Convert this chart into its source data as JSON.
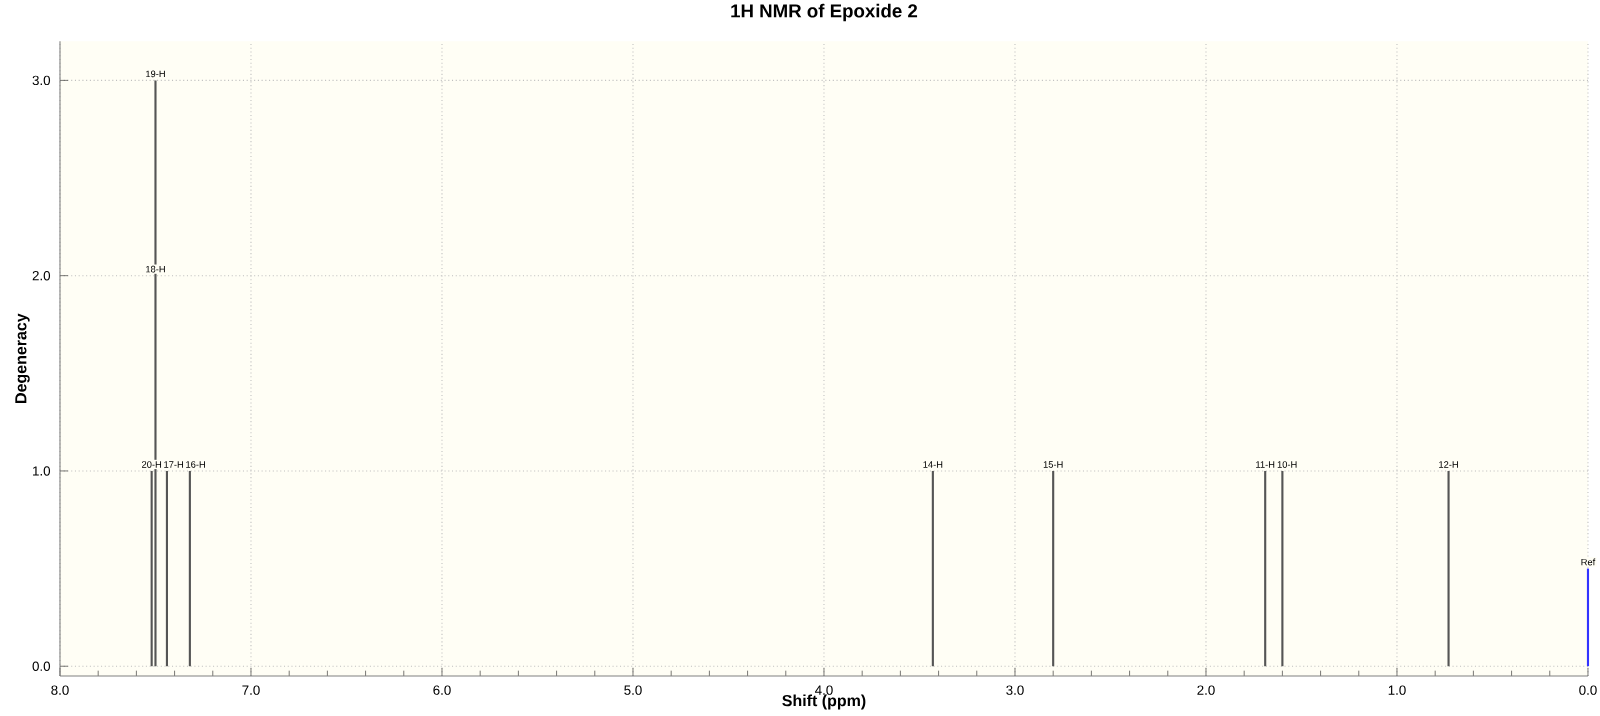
{
  "chart_data": {
    "type": "bar",
    "title": "1H NMR of Epoxide 2",
    "xlabel": "Shift (ppm)",
    "ylabel": "Degeneracy",
    "xlim": [
      8.0,
      0.0
    ],
    "xticks": [
      {
        "value": 8,
        "label": "8.0"
      },
      {
        "value": 7,
        "label": "7.0"
      },
      {
        "value": 6,
        "label": "6.0"
      },
      {
        "value": 5,
        "label": "5.0"
      },
      {
        "value": 4,
        "label": "4.0"
      },
      {
        "value": 3,
        "label": "3.0"
      },
      {
        "value": 2,
        "label": "2.0"
      },
      {
        "value": 1,
        "label": "1.0"
      },
      {
        "value": 0,
        "label": "0.0"
      }
    ],
    "ylim": [
      -0.05,
      3.2
    ],
    "yticks": [
      {
        "value": 0,
        "label": "0.0"
      },
      {
        "value": 1,
        "label": "1.0"
      },
      {
        "value": 2,
        "label": "2.0"
      },
      {
        "value": 3,
        "label": "3.0"
      }
    ],
    "grid": true,
    "series": [
      {
        "color": "#555555",
        "x": [
          7.52,
          7.5,
          7.44,
          7.32,
          3.43,
          2.8,
          1.69,
          1.6,
          0.73
        ],
        "values": [
          1,
          3,
          1,
          1,
          1,
          1,
          1,
          1,
          1
        ]
      },
      {
        "color": "#3333ff",
        "x": [
          0.0
        ],
        "values": [
          0.5
        ]
      }
    ],
    "annotations": [
      {
        "text": "19-H",
        "x": 7.5,
        "y": 3
      },
      {
        "text": "18-H",
        "x": 7.5,
        "y": 2
      },
      {
        "text": "20-H",
        "x": 7.52,
        "y": 1
      },
      {
        "text": "17-H",
        "x": 7.44,
        "y": 1
      },
      {
        "text": "16-H",
        "x": 7.32,
        "y": 1
      },
      {
        "text": "14-H",
        "x": 3.43,
        "y": 1
      },
      {
        "text": "15-H",
        "x": 2.8,
        "y": 1
      },
      {
        "text": "11-H",
        "x": 1.69,
        "y": 1
      },
      {
        "text": "10-H",
        "x": 1.6,
        "y": 1
      },
      {
        "text": "12-H",
        "x": 0.73,
        "y": 1
      },
      {
        "text": "Ref",
        "x": 0.0,
        "y": 0.5
      }
    ]
  }
}
